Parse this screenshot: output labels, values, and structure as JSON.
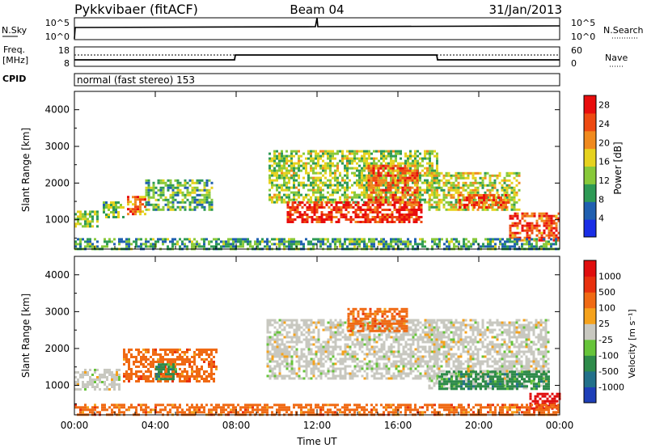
{
  "header": {
    "title": "Pykkvibaer (fitACF)",
    "beam": "Beam 04",
    "date": "31/Jan/2013"
  },
  "aux_panels": {
    "nsky_label": "N.Sky",
    "nsky_ticks": [
      "10^5",
      "10^0"
    ],
    "nsearch_label": "N.Search",
    "nsearch_ticks": [
      "10^5",
      "10^0"
    ],
    "freq_label_1": "Freq.",
    "freq_label_2": "[MHz]",
    "freq_ticks": [
      "18",
      "8"
    ],
    "nave_label": "Nave",
    "nave_ticks": [
      "60",
      "0"
    ],
    "cpid_label": "CPID",
    "cpid_text": "normal (fast stereo) 153"
  },
  "chart_data": [
    {
      "type": "heatmap",
      "panel": "power",
      "ylabel": "Slant Range [km]",
      "y_ticks": [
        "1000",
        "2000",
        "3000",
        "4000"
      ],
      "ylim": [
        200,
        4500
      ],
      "x_ticks": [
        "00:00",
        "04:00",
        "08:00",
        "12:00",
        "16:00",
        "20:00",
        "00:00"
      ],
      "xlim_hours": [
        0,
        24
      ],
      "colorbar_label": "Power [dB]",
      "colorbar_ticks": [
        "4",
        "8",
        "12",
        "16",
        "20",
        "24",
        "28"
      ],
      "colorbar_range": [
        0,
        30
      ],
      "colorbar_colors": [
        "#1a2ee6",
        "#1f5fb0",
        "#2e9a55",
        "#88c93a",
        "#e6d21e",
        "#f08a1e",
        "#ee4a12",
        "#e80d0d"
      ],
      "regions": [
        {
          "t": [
            0.0,
            1.1
          ],
          "range": [
            850,
            1250
          ],
          "level": 0.45
        },
        {
          "t": [
            1.4,
            2.4
          ],
          "range": [
            1050,
            1500
          ],
          "level": 0.4
        },
        {
          "t": [
            2.6,
            3.5
          ],
          "range": [
            1150,
            1650
          ],
          "level": 0.75
        },
        {
          "t": [
            3.5,
            6.8
          ],
          "range": [
            1250,
            2100
          ],
          "level": 0.35
        },
        {
          "t": [
            9.6,
            18.0
          ],
          "range": [
            1500,
            2900
          ],
          "level": 0.45
        },
        {
          "t": [
            10.5,
            17.2
          ],
          "range": [
            950,
            1500
          ],
          "level": 0.95
        },
        {
          "t": [
            14.5,
            17.0
          ],
          "range": [
            1400,
            2500
          ],
          "level": 0.8
        },
        {
          "t": [
            17.5,
            22.0
          ],
          "range": [
            1300,
            2300
          ],
          "level": 0.5
        },
        {
          "t": [
            19.0,
            21.5
          ],
          "range": [
            1350,
            1700
          ],
          "level": 0.85
        },
        {
          "t": [
            21.5,
            24.0
          ],
          "range": [
            450,
            1200
          ],
          "level": 0.85
        },
        {
          "t": [
            0.0,
            24.0
          ],
          "range": [
            200,
            500
          ],
          "level": 0.3
        }
      ]
    },
    {
      "type": "heatmap",
      "panel": "velocity",
      "ylabel": "Slant Range [km]",
      "y_ticks": [
        "1000",
        "2000",
        "3000",
        "4000"
      ],
      "ylim": [
        200,
        4500
      ],
      "x_ticks": [
        "00:00",
        "04:00",
        "08:00",
        "12:00",
        "16:00",
        "20:00",
        "00:00"
      ],
      "xlim_hours": [
        0,
        24
      ],
      "xlabel": "Time UT",
      "colorbar_label": "Velocity [m s⁻¹]",
      "colorbar_ticks": [
        "1000",
        "500",
        "100",
        "25",
        "-25",
        "-100",
        "-500",
        "-1000"
      ],
      "colorbar_colors": [
        "#1e3fb8",
        "#22708a",
        "#2e8b4a",
        "#66c43a",
        "#c8c8c0",
        "#f5a21c",
        "#f06a14",
        "#e8310e",
        "#e00e0e"
      ],
      "regions": [
        {
          "t": [
            0.0,
            2.2
          ],
          "range": [
            900,
            1450
          ],
          "class": "ground"
        },
        {
          "t": [
            2.4,
            7.0
          ],
          "range": [
            1100,
            2000
          ],
          "class": "orange"
        },
        {
          "t": [
            4.0,
            5.0
          ],
          "range": [
            1200,
            1600
          ],
          "class": "green"
        },
        {
          "t": [
            9.5,
            18.0
          ],
          "range": [
            1200,
            2800
          ],
          "class": "ground"
        },
        {
          "t": [
            17.5,
            23.5
          ],
          "range": [
            900,
            2800
          ],
          "class": "ground"
        },
        {
          "t": [
            18.0,
            23.5
          ],
          "range": [
            900,
            1400
          ],
          "class": "green"
        },
        {
          "t": [
            22.5,
            24.0
          ],
          "range": [
            400,
            800
          ],
          "class": "red"
        },
        {
          "t": [
            13.5,
            16.5
          ],
          "range": [
            2500,
            3100
          ],
          "class": "orange"
        },
        {
          "t": [
            0.0,
            24.0
          ],
          "range": [
            200,
            500
          ],
          "class": "orange"
        }
      ]
    }
  ],
  "colors": {
    "frame": "#000000",
    "background": "#ffffff"
  }
}
